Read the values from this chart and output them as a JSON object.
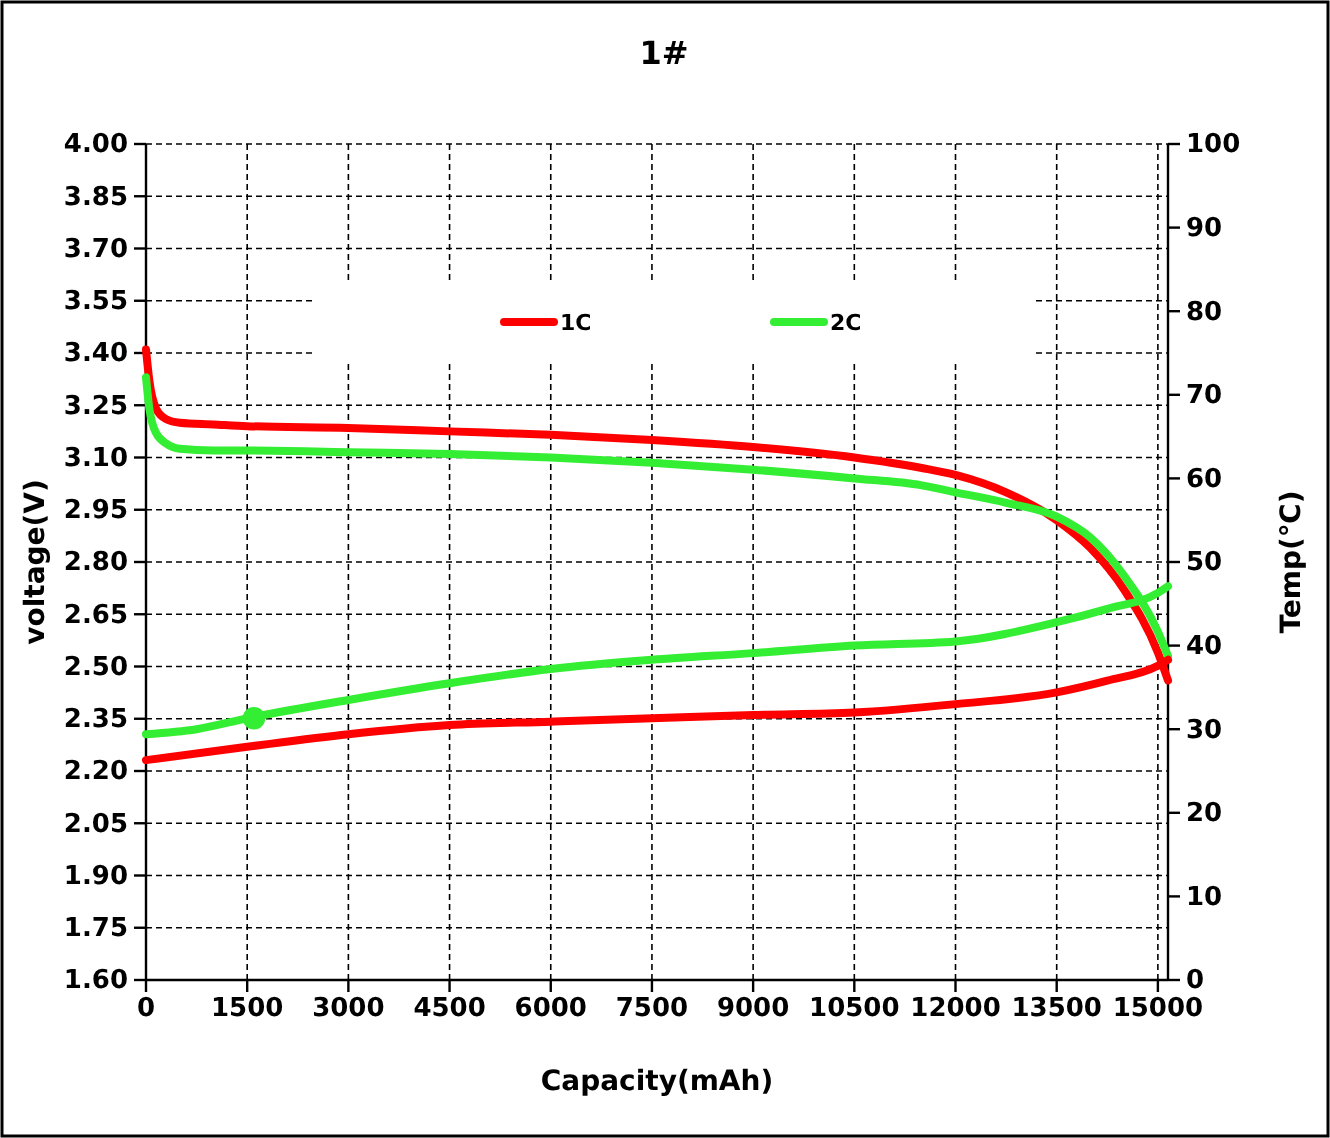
{
  "chart_data": {
    "type": "line",
    "title": "1#",
    "xlabel": "Capacity(mAh)",
    "ylabel": "voltage(V)",
    "y2label": "Temp(℃)",
    "xlim": [
      0,
      15150
    ],
    "xticks": [
      0,
      1500,
      3000,
      4500,
      6000,
      7500,
      9000,
      10500,
      12000,
      13500,
      15000
    ],
    "ylim": [
      1.6,
      4.0
    ],
    "yticks": [
      {
        "value": 1.6,
        "label": "1.60"
      },
      {
        "value": 1.75,
        "label": "1.75"
      },
      {
        "value": 1.9,
        "label": "1.90"
      },
      {
        "value": 2.05,
        "label": "2.05"
      },
      {
        "value": 2.2,
        "label": "2.20"
      },
      {
        "value": 2.35,
        "label": "2.35"
      },
      {
        "value": 2.5,
        "label": "2.50"
      },
      {
        "value": 2.65,
        "label": "2.65"
      },
      {
        "value": 2.8,
        "label": "2.80"
      },
      {
        "value": 2.95,
        "label": "2.95"
      },
      {
        "value": 3.1,
        "label": "3.10"
      },
      {
        "value": 3.25,
        "label": "3.25"
      },
      {
        "value": 3.4,
        "label": "3.40"
      },
      {
        "value": 3.55,
        "label": "3.55"
      },
      {
        "value": 3.7,
        "label": "3.70"
      },
      {
        "value": 3.85,
        "label": "3.85"
      },
      {
        "value": 4.0,
        "label": "4.00"
      }
    ],
    "y2lim": [
      0,
      100
    ],
    "y2ticks": [
      0,
      10,
      20,
      30,
      40,
      50,
      60,
      70,
      80,
      90,
      100
    ],
    "grid": true,
    "legend": "top",
    "line_style": "solid",
    "marker": "none",
    "series": [
      {
        "name": "1C",
        "color": "#ff0000",
        "x": [
          0,
          50,
          150,
          300,
          500,
          1000,
          1500,
          3000,
          4500,
          6000,
          7500,
          9000,
          10500,
          11500,
          12000,
          12750,
          13500,
          14000,
          14500,
          15000,
          15150
        ],
        "values": [
          3.41,
          3.32,
          3.24,
          3.21,
          3.2,
          3.195,
          3.19,
          3.185,
          3.175,
          3.165,
          3.15,
          3.13,
          3.1,
          3.07,
          3.05,
          3.0,
          2.92,
          2.84,
          2.72,
          2.54,
          2.46
        ]
      },
      {
        "name": "2C",
        "color": "#33ee33",
        "x": [
          0,
          50,
          150,
          300,
          500,
          1000,
          1500,
          3000,
          4500,
          6000,
          7500,
          9000,
          10500,
          11500,
          12000,
          12750,
          13500,
          14000,
          14500,
          15000,
          15150
        ],
        "values": [
          3.33,
          3.24,
          3.17,
          3.14,
          3.125,
          3.12,
          3.12,
          3.115,
          3.11,
          3.1,
          3.085,
          3.065,
          3.04,
          3.02,
          3.0,
          2.97,
          2.93,
          2.87,
          2.76,
          2.6,
          2.53
        ]
      },
      {
        "color": "#ff0000",
        "axis": "y2",
        "x": [
          0,
          1500,
          3000,
          4500,
          6000,
          7500,
          9000,
          10500,
          12000,
          13500,
          14250,
          15000,
          15150
        ],
        "values": [
          26.3,
          27.9,
          29.4,
          30.5,
          30.9,
          31.3,
          31.7,
          32.0,
          33.0,
          34.4,
          35.8,
          37.6,
          38.3
        ]
      },
      {
        "color": "#33ee33",
        "axis": "y2",
        "x": [
          0,
          750,
          1500,
          3000,
          4500,
          6000,
          7500,
          9000,
          10500,
          12000,
          13500,
          14250,
          15000,
          15150
        ],
        "values": [
          29.4,
          30.0,
          31.3,
          33.5,
          35.5,
          37.2,
          38.3,
          39.1,
          40.0,
          40.5,
          42.8,
          44.4,
          46.3,
          47.1
        ]
      },
      {
        "type": "scatter",
        "color": "#33ee33",
        "axis": "y2",
        "marker": "circle",
        "x": [
          1600
        ],
        "values": [
          31.3
        ]
      }
    ]
  }
}
